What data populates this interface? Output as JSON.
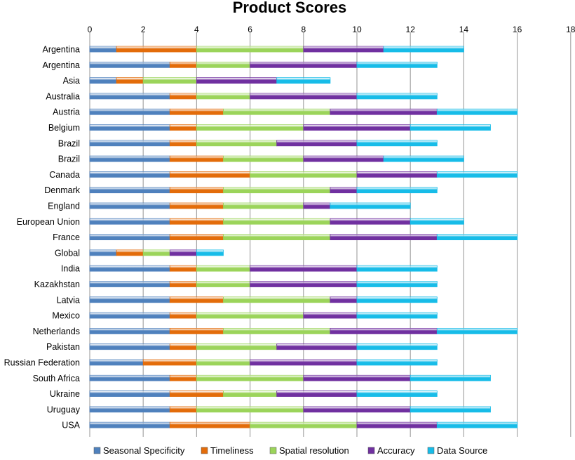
{
  "chart_data": {
    "type": "bar",
    "orientation": "horizontal",
    "stacked": true,
    "title": "Product Scores",
    "xlabel": "",
    "ylabel": "",
    "xlim": [
      0,
      18
    ],
    "xticks": [
      0,
      2,
      4,
      6,
      8,
      10,
      12,
      14,
      16,
      18
    ],
    "grid": true,
    "legend_position": "bottom",
    "categories": [
      "Argentina",
      "Argentina",
      "Asia",
      "Australia",
      "Austria",
      "Belgium",
      "Brazil",
      "Brazil",
      "Canada",
      "Denmark",
      "England",
      "European Union",
      "France",
      "Global",
      "India",
      "Kazakhstan",
      "Latvia",
      "Mexico",
      "Netherlands",
      "Pakistan",
      "Russian Federation",
      "South Africa",
      "Ukraine",
      "Uruguay",
      "USA"
    ],
    "series": [
      {
        "name": "Seasonal Specificity",
        "color": "#4F81BD",
        "values": [
          1,
          3,
          1,
          3,
          3,
          3,
          3,
          3,
          3,
          3,
          3,
          3,
          3,
          1,
          3,
          3,
          3,
          3,
          3,
          3,
          2,
          3,
          3,
          3,
          3
        ]
      },
      {
        "name": "Timeliness",
        "color": "#E36C0A",
        "values": [
          3,
          1,
          1,
          1,
          2,
          1,
          1,
          2,
          3,
          2,
          2,
          2,
          2,
          1,
          1,
          1,
          2,
          1,
          2,
          1,
          2,
          1,
          2,
          1,
          3
        ]
      },
      {
        "name": "Spatial resolution",
        "color": "#9BD45A",
        "values": [
          4,
          2,
          2,
          2,
          4,
          4,
          3,
          3,
          4,
          4,
          3,
          4,
          4,
          1,
          2,
          2,
          4,
          4,
          4,
          3,
          2,
          4,
          2,
          4,
          4
        ]
      },
      {
        "name": "Accuracy",
        "color": "#7030A0",
        "values": [
          3,
          4,
          3,
          4,
          4,
          4,
          3,
          3,
          3,
          1,
          1,
          3,
          4,
          1,
          4,
          4,
          1,
          2,
          4,
          3,
          4,
          4,
          3,
          4,
          3
        ]
      },
      {
        "name": "Data Source",
        "color": "#17BCE8",
        "values": [
          3,
          3,
          2,
          3,
          3,
          3,
          3,
          3,
          3,
          3,
          3,
          2,
          3,
          1,
          3,
          3,
          3,
          3,
          3,
          3,
          3,
          3,
          3,
          3,
          3
        ]
      }
    ]
  }
}
